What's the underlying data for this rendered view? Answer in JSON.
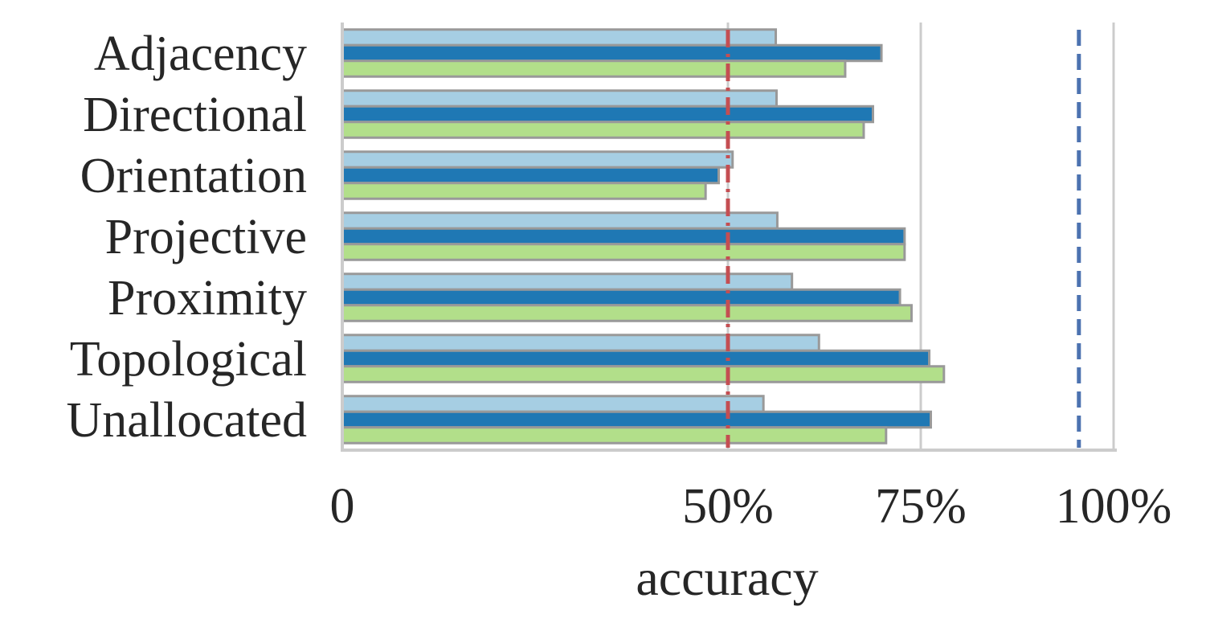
{
  "chart_data": {
    "type": "bar",
    "orientation": "horizontal",
    "categories": [
      "Adjacency",
      "Directional",
      "Orientation",
      "Projective",
      "Proximity",
      "Topological",
      "Unallocated"
    ],
    "series": [
      {
        "color": "#a6cee3",
        "values": [
          56.2,
          56.3,
          50.6,
          56.4,
          58.3,
          61.8,
          54.6
        ]
      },
      {
        "color": "#1f78b4",
        "values": [
          69.9,
          68.8,
          48.8,
          72.9,
          72.3,
          76.1,
          76.3
        ]
      },
      {
        "color": "#b2df8a",
        "values": [
          65.2,
          67.6,
          47.1,
          72.9,
          73.8,
          78.0,
          70.5
        ]
      }
    ],
    "xlabel": "accuracy",
    "xlim": [
      0,
      100
    ],
    "xticks": [
      {
        "value": 0,
        "label": "0"
      },
      {
        "value": 50,
        "label": "50%"
      },
      {
        "value": 75,
        "label": "75%"
      },
      {
        "value": 100,
        "label": "100%"
      }
    ],
    "reference_lines": [
      {
        "value": 50,
        "color": "#c44e52",
        "style": "dashdot"
      },
      {
        "value": 95.5,
        "color": "#4c72b0",
        "style": "dashed"
      }
    ],
    "grid": "vertical",
    "legend": "none"
  }
}
